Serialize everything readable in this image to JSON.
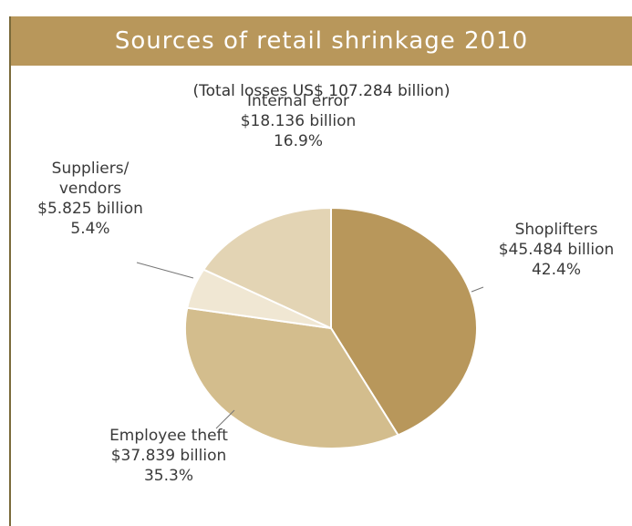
{
  "header": {
    "title": "Sources of retail shrinkage 2010",
    "subtitle": "(Total losses US$ 107.284 billion)"
  },
  "chart_data": {
    "type": "pie",
    "title": "Sources of retail shrinkage 2010",
    "subtitle": "(Total losses US$ 107.284 billion)",
    "slices": [
      {
        "name": "Shoplifters",
        "amount": "$45.484 billion",
        "percent_label": "42.4%",
        "value": 42.4,
        "color": "#b8975b"
      },
      {
        "name": "Employee theft",
        "amount": "$37.839 billion",
        "percent_label": "35.3%",
        "value": 35.3,
        "color": "#d3bd8d"
      },
      {
        "name": "Suppliers/\nvendors",
        "amount": "$5.825 billion",
        "percent_label": "5.4%",
        "value": 5.4,
        "color": "#f0e7d3"
      },
      {
        "name": "Internal error",
        "amount": "$18.136 billion",
        "percent_label": "16.9%",
        "value": 16.9,
        "color": "#e3d4b4"
      }
    ]
  },
  "colors": {
    "title_bar": "#b8975b",
    "slice_border": "#ffffff"
  }
}
